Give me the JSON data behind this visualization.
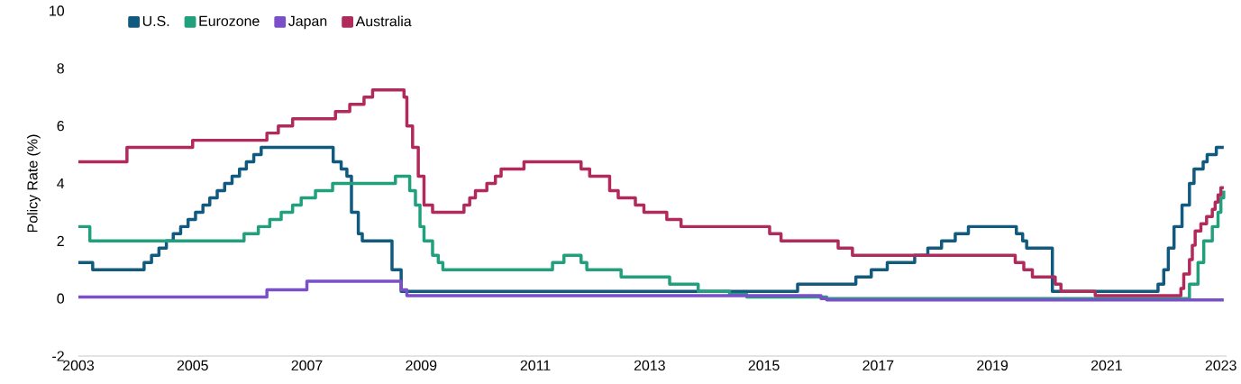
{
  "chart_data": {
    "type": "step",
    "ylabel": "Policy Rate (%)",
    "xlim": [
      2003,
      2023.1
    ],
    "ylim": [
      -2,
      10
    ],
    "xticks": [
      2003,
      2005,
      2007,
      2009,
      2011,
      2013,
      2015,
      2017,
      2019,
      2021,
      2023
    ],
    "yticks": [
      -2,
      0,
      2,
      4,
      6,
      8,
      10
    ],
    "legend": "top left",
    "grid": false,
    "series": [
      {
        "name": "U.S.",
        "color": "#0f5a7e",
        "x": [
          2003,
          2003.25,
          2004.15,
          2004.28,
          2004.41,
          2004.54,
          2004.66,
          2004.79,
          2004.92,
          2005.05,
          2005.18,
          2005.3,
          2005.43,
          2005.56,
          2005.69,
          2005.82,
          2005.94,
          2006.07,
          2006.2,
          2007.46,
          2007.6,
          2007.7,
          2007.78,
          2007.9,
          2007.97,
          2008.49,
          2008.65,
          2015.59,
          2016.61,
          2016.88,
          2017.16,
          2017.64,
          2017.87,
          2018.11,
          2018.35,
          2018.58,
          2019.42,
          2019.53,
          2019.6,
          2020.05,
          2021.9,
          2022.0,
          2022.08,
          2022.18,
          2022.32,
          2022.45,
          2022.53,
          2022.69,
          2022.76,
          2022.92,
          2023.05
        ],
        "values": [
          1.25,
          1.0,
          1.25,
          1.5,
          1.75,
          2.0,
          2.25,
          2.5,
          2.75,
          3.0,
          3.25,
          3.5,
          3.75,
          4.0,
          4.25,
          4.5,
          4.75,
          5.0,
          5.25,
          4.75,
          4.5,
          4.25,
          3.0,
          2.25,
          2.0,
          1.0,
          0.25,
          0.5,
          0.75,
          1.0,
          1.25,
          1.5,
          1.75,
          2.0,
          2.25,
          2.5,
          2.25,
          2.0,
          1.75,
          0.25,
          0.5,
          1.0,
          1.75,
          2.5,
          3.25,
          4.0,
          4.5,
          4.75,
          5.0,
          5.25,
          5.25
        ]
      },
      {
        "name": "Eurozone",
        "color": "#21a07d",
        "x": [
          2003,
          2003.2,
          2005.9,
          2006.15,
          2006.35,
          2006.55,
          2006.75,
          2006.9,
          2007.15,
          2007.45,
          2008.55,
          2008.8,
          2008.9,
          2008.98,
          2009.05,
          2009.2,
          2009.3,
          2009.38,
          2011.3,
          2011.5,
          2011.8,
          2011.9,
          2012.5,
          2013.35,
          2013.85,
          2014.4,
          2014.7,
          2016.1,
          2022.45,
          2022.6,
          2022.7,
          2022.85,
          2022.95,
          2023.0,
          2023.05
        ],
        "values": [
          2.5,
          2.0,
          2.25,
          2.5,
          2.75,
          3.0,
          3.25,
          3.5,
          3.75,
          4.0,
          4.25,
          3.75,
          3.25,
          2.5,
          2.0,
          1.5,
          1.25,
          1.0,
          1.25,
          1.5,
          1.25,
          1.0,
          0.75,
          0.5,
          0.25,
          0.15,
          0.05,
          0.0,
          0.5,
          1.25,
          2.0,
          2.5,
          3.0,
          3.5,
          3.75
        ]
      },
      {
        "name": "Japan",
        "color": "#7b4fc8",
        "x": [
          2003,
          2006.3,
          2007.0,
          2008.65,
          2008.75,
          2016.0,
          2016.1,
          2023.05
        ],
        "values": [
          0.05,
          0.3,
          0.6,
          0.3,
          0.1,
          0.0,
          -0.05,
          -0.05
        ]
      },
      {
        "name": "Australia",
        "color": "#b02a5c",
        "x": [
          2003,
          2003.85,
          2005.0,
          2006.3,
          2006.5,
          2006.75,
          2007.5,
          2007.75,
          2008.0,
          2008.15,
          2008.7,
          2008.75,
          2008.85,
          2008.95,
          2009.05,
          2009.2,
          2009.75,
          2009.85,
          2009.95,
          2010.15,
          2010.3,
          2010.4,
          2010.8,
          2011.8,
          2011.95,
          2012.3,
          2012.45,
          2012.75,
          2012.9,
          2013.3,
          2013.55,
          2015.1,
          2015.3,
          2016.3,
          2016.55,
          2019.4,
          2019.55,
          2019.7,
          2020.1,
          2020.2,
          2020.8,
          2022.3,
          2022.35,
          2022.45,
          2022.5,
          2022.55,
          2022.65,
          2022.75,
          2022.85,
          2022.9,
          2022.95,
          2023.0,
          2023.05
        ],
        "values": [
          4.75,
          5.25,
          5.5,
          5.75,
          6.0,
          6.25,
          6.5,
          6.75,
          7.0,
          7.25,
          7.0,
          6.0,
          5.25,
          4.25,
          3.25,
          3.0,
          3.25,
          3.5,
          3.75,
          4.0,
          4.25,
          4.5,
          4.75,
          4.5,
          4.25,
          3.75,
          3.5,
          3.25,
          3.0,
          2.75,
          2.5,
          2.25,
          2.0,
          1.75,
          1.5,
          1.25,
          1.0,
          0.75,
          0.5,
          0.25,
          0.1,
          0.35,
          0.85,
          1.35,
          1.85,
          2.35,
          2.6,
          2.85,
          3.1,
          3.35,
          3.6,
          3.85,
          3.85
        ]
      }
    ]
  }
}
